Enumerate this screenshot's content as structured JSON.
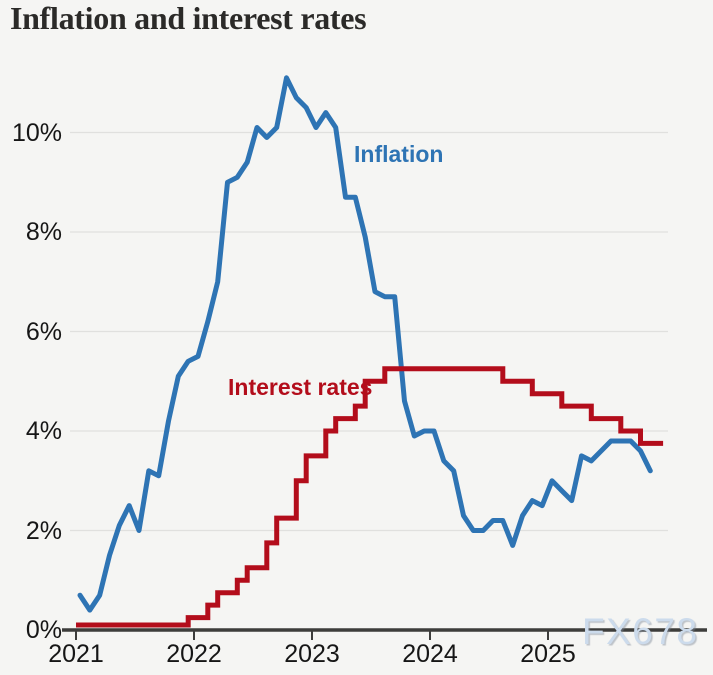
{
  "title": "Inflation and interest rates",
  "watermark": "FX678",
  "colors": {
    "background": "#f5f5f3",
    "inflation_line": "#2e74b4",
    "interest_line": "#b30d1b",
    "grid_line": "#e0e0de",
    "axis_line": "#3d3d3b",
    "title_text": "#2b2a28",
    "tick_text": "#161616",
    "watermark_text": "#ccdbec"
  },
  "chart_data": {
    "type": "line",
    "title": "Inflation and interest rates",
    "grid": "horizontal",
    "x_axis": {
      "tick_labels": [
        "2021",
        "2022",
        "2023",
        "2024",
        "2025"
      ],
      "range_years": [
        2021,
        2026.35
      ]
    },
    "y_axis": {
      "tick_labels": [
        "0%",
        "2%",
        "4%",
        "6%",
        "8%",
        "10%"
      ],
      "tick_values": [
        0,
        2,
        4,
        6,
        8,
        10
      ],
      "range": [
        0,
        11.6
      ],
      "unit": "%"
    },
    "series": [
      {
        "name": "Inflation",
        "type": "line",
        "color": "#2e74b4",
        "start": "2021-01",
        "frequency": "monthly",
        "values": [
          0.7,
          0.4,
          0.7,
          1.5,
          2.1,
          2.5,
          2.0,
          3.2,
          3.1,
          4.2,
          5.1,
          5.4,
          5.5,
          6.2,
          7.0,
          9.0,
          9.1,
          9.4,
          10.1,
          9.9,
          10.1,
          11.1,
          10.7,
          10.5,
          10.1,
          10.4,
          10.1,
          8.7,
          8.7,
          7.9,
          6.8,
          6.7,
          6.7,
          4.6,
          3.9,
          4.0,
          4.0,
          3.4,
          3.2,
          2.3,
          2.0,
          2.0,
          2.2,
          2.2,
          1.7,
          2.3,
          2.6,
          2.5,
          3.0,
          2.8,
          2.6,
          3.5,
          3.4,
          3.6,
          3.8,
          3.8,
          3.8,
          3.6,
          3.2
        ]
      },
      {
        "name": "Interest rates",
        "type": "step",
        "color": "#b30d1b",
        "start": "2021-01",
        "steps": [
          {
            "month_index": 0,
            "rate": 0.1
          },
          {
            "month_index": 11,
            "rate": 0.25
          },
          {
            "month_index": 13,
            "rate": 0.5
          },
          {
            "month_index": 14,
            "rate": 0.75
          },
          {
            "month_index": 16,
            "rate": 1.0
          },
          {
            "month_index": 17,
            "rate": 1.25
          },
          {
            "month_index": 19,
            "rate": 1.75
          },
          {
            "month_index": 20,
            "rate": 2.25
          },
          {
            "month_index": 22,
            "rate": 3.0
          },
          {
            "month_index": 23,
            "rate": 3.5
          },
          {
            "month_index": 25,
            "rate": 4.0
          },
          {
            "month_index": 26,
            "rate": 4.25
          },
          {
            "month_index": 28,
            "rate": 4.5
          },
          {
            "month_index": 29,
            "rate": 5.0
          },
          {
            "month_index": 31,
            "rate": 5.25
          },
          {
            "month_index": 43,
            "rate": 5.0
          },
          {
            "month_index": 46,
            "rate": 4.75
          },
          {
            "month_index": 49,
            "rate": 4.5
          },
          {
            "month_index": 52,
            "rate": 4.25
          },
          {
            "month_index": 55,
            "rate": 4.0
          },
          {
            "month_index": 57,
            "rate": 3.75
          }
        ],
        "end_month_index": 59.3
      }
    ]
  }
}
